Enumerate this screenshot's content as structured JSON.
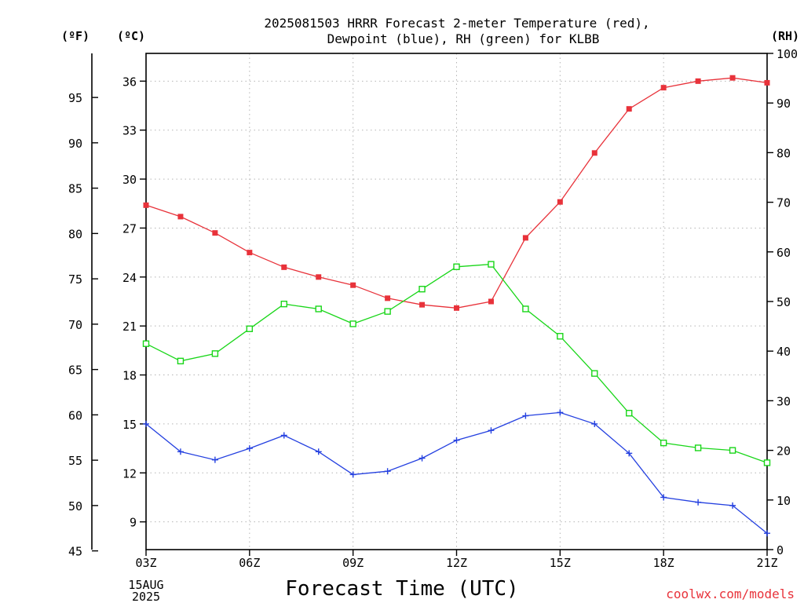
{
  "chart_data": {
    "type": "line",
    "title_lines": [
      "2025081503 HRRR Forecast 2-meter Temperature (red),",
      "Dewpoint (blue), RH (green) for KLBB"
    ],
    "xlabel": "Forecast Time (UTC)",
    "x_categories": [
      "03Z",
      "04Z",
      "05Z",
      "06Z",
      "07Z",
      "08Z",
      "09Z",
      "10Z",
      "11Z",
      "12Z",
      "13Z",
      "14Z",
      "15Z",
      "16Z",
      "17Z",
      "18Z",
      "19Z",
      "20Z",
      "21Z"
    ],
    "x_tick_labels": [
      "03Z",
      "06Z",
      "09Z",
      "12Z",
      "15Z",
      "18Z",
      "21Z"
    ],
    "start_date_lines": [
      "15AUG",
      "2025"
    ],
    "unit_labels": {
      "fahrenheit": "(ºF)",
      "celsius": "(ºC)",
      "rh": "(RH)"
    },
    "axes": {
      "celsius": {
        "range": [
          7.3,
          37.7
        ],
        "ticks": [
          9,
          12,
          15,
          18,
          21,
          24,
          27,
          30,
          33,
          36
        ]
      },
      "fahrenheit": {
        "ticks": [
          45,
          50,
          55,
          60,
          65,
          70,
          75,
          80,
          85,
          90,
          95
        ]
      },
      "rh": {
        "range": [
          0,
          100
        ],
        "ticks": [
          0,
          10,
          20,
          30,
          40,
          50,
          60,
          70,
          80,
          90,
          100
        ]
      }
    },
    "grid": true,
    "series": [
      {
        "key": "temperature",
        "axis": "celsius",
        "color": "#e8323a",
        "marker": "filled-square",
        "values": [
          28.4,
          27.7,
          26.7,
          25.5,
          24.6,
          24.0,
          23.5,
          22.7,
          22.3,
          22.1,
          22.5,
          26.4,
          28.6,
          31.6,
          34.3,
          35.6,
          36.0,
          36.2,
          35.9
        ]
      },
      {
        "key": "dewpoint",
        "axis": "celsius",
        "color": "#2440e0",
        "marker": "plus",
        "values": [
          15.0,
          13.3,
          12.8,
          13.5,
          14.3,
          13.3,
          11.9,
          12.1,
          12.9,
          14.0,
          14.6,
          15.5,
          15.7,
          15.0,
          13.2,
          10.5,
          10.2,
          10.0,
          8.3
        ]
      },
      {
        "key": "rh",
        "axis": "rh",
        "color": "#19d619",
        "marker": "open-square",
        "values": [
          41.5,
          38.0,
          39.5,
          44.5,
          49.5,
          48.5,
          45.5,
          48.0,
          52.5,
          57.0,
          57.5,
          48.5,
          43.0,
          35.5,
          27.5,
          21.5,
          20.5,
          20.0,
          17.5
        ]
      }
    ]
  },
  "credit": "coolwx.com/models"
}
